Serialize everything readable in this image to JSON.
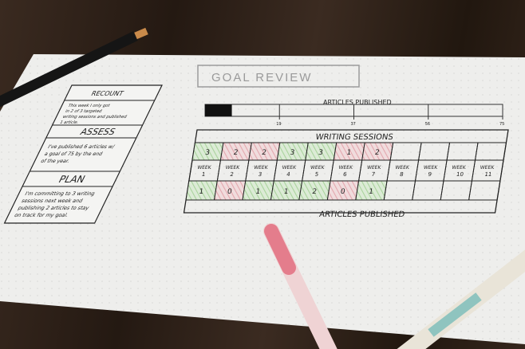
{
  "sheet": {
    "title": "GOAL REVIEW",
    "progress": {
      "label": "ARTICLES PUBLISHED",
      "ticks": [
        "19",
        "37",
        "56",
        "75"
      ],
      "filled_fraction": 0.09
    },
    "left_panel": {
      "recount_heading": "RECOUNT",
      "recount_text": [
        "This week I only got",
        "in 2 of 3 targeted",
        "writing sessions and published",
        "1 article."
      ],
      "assess_heading": "ASSESS",
      "assess_text": [
        "I've published 6 articles w/",
        "a goal of 75 by the end",
        "of the year."
      ],
      "plan_heading": "PLAN",
      "plan_text": [
        "I'm committing to 3 writing",
        "sessions next week and",
        "publishing 2 articles to stay",
        "on track for my goal."
      ]
    },
    "table": {
      "top_label": "WRITING SESSIONS",
      "bottom_label": "ARTICLES PUBLISHED",
      "week_word": "WEEK",
      "weeks": [
        "1",
        "2",
        "3",
        "4",
        "5",
        "6",
        "7",
        "8",
        "9",
        "10",
        "11"
      ],
      "writing_sessions": [
        "3",
        "2",
        "2",
        "3",
        "3",
        "1",
        "2",
        "",
        "",
        "",
        ""
      ],
      "articles_published": [
        "1",
        "0",
        "1",
        "1",
        "2",
        "0",
        "1",
        "",
        "",
        "",
        ""
      ],
      "session_status": [
        "met",
        "missed",
        "missed",
        "met",
        "met",
        "missed",
        "missed",
        "",
        "",
        "",
        ""
      ],
      "article_status": [
        "met",
        "missed",
        "met",
        "met",
        "met",
        "missed",
        "met",
        "",
        "",
        "",
        ""
      ]
    }
  },
  "colors": {
    "met": "#b9dcb0",
    "missed": "#e8b4b8",
    "paper": "#f1f1ef",
    "ink": "#222222"
  }
}
